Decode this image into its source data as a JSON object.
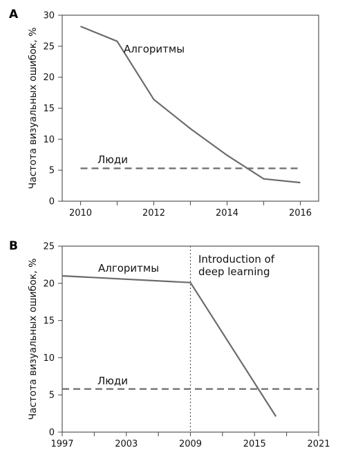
{
  "chart_data": [
    {
      "panel": "A",
      "type": "line",
      "ylabel": "Частота визуальных ошибок, %",
      "xlim": [
        2009.5,
        2016.5
      ],
      "ylim": [
        0,
        30
      ],
      "xticks": [
        2010,
        2011,
        2012,
        2013,
        2014,
        2015,
        2016
      ],
      "xtick_labels": [
        "2010",
        "",
        "2012",
        "",
        "2014",
        "",
        "2016"
      ],
      "yticks": [
        0,
        5,
        10,
        15,
        20,
        25,
        30
      ],
      "series": [
        {
          "name": "Алгоритмы",
          "x": [
            2010,
            2011,
            2012,
            2013,
            2014,
            2015,
            2016
          ],
          "y": [
            28.2,
            25.8,
            16.4,
            11.7,
            7.4,
            3.6,
            3.0
          ]
        },
        {
          "name": "Люди",
          "x": [
            2010,
            2016
          ],
          "y": [
            5.3,
            5.3
          ]
        }
      ]
    },
    {
      "panel": "B",
      "type": "line",
      "ylabel": "Частота визуальных ошибок, %",
      "xlim": [
        1997,
        2021
      ],
      "ylim": [
        0,
        25
      ],
      "xticks": [
        1997,
        2000,
        2003,
        2006,
        2009,
        2012,
        2015,
        2018,
        2021
      ],
      "xtick_labels": [
        "1997",
        "",
        "2003",
        "",
        "2009",
        "",
        "2015",
        "",
        "2021"
      ],
      "yticks": [
        0,
        5,
        10,
        15,
        20,
        25
      ],
      "series": [
        {
          "name": "Алгоритмы",
          "x": [
            1997,
            2009,
            2017
          ],
          "y": [
            21.0,
            20.1,
            2.1
          ]
        },
        {
          "name": "Люди",
          "x": [
            1997,
            2021
          ],
          "y": [
            5.8,
            5.8
          ]
        }
      ],
      "event": {
        "x": 2009,
        "label_lines": [
          "Introduction of",
          "deep learning"
        ]
      }
    }
  ]
}
